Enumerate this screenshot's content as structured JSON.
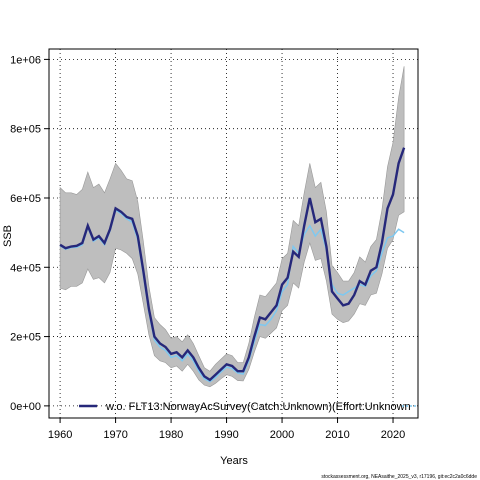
{
  "chart_data": {
    "type": "line",
    "xlabel": "Years",
    "ylabel": "SSB",
    "xlim": [
      1958,
      2024.5
    ],
    "ylim": [
      -35000,
      1030000
    ],
    "x_ticks": [
      1960,
      1970,
      1980,
      1990,
      2000,
      2010,
      2020
    ],
    "x_tick_labels": [
      "1960",
      "1970",
      "1980",
      "1990",
      "2000",
      "2010",
      "2020"
    ],
    "y_ticks": [
      0,
      200000,
      400000,
      600000,
      800000,
      1000000
    ],
    "y_tick_labels": [
      "0e+00",
      "2e+05",
      "4e+05",
      "6e+05",
      "8e+05",
      "1e+06"
    ],
    "grid": true,
    "legend_position": "bottom-right",
    "legend_entry": "w.o. FLT13:NorwayAcSurvey(Catch:Unknown)(Effort:Unknown",
    "footer": "stockassessment.org, NEAsaithe_2025_v3, r17196, git:ec2c2a0c6dde",
    "colors": {
      "band": "#bebebe",
      "band_edge": "#999999",
      "main_line": "#26287a",
      "alt_line": "#7ec8f0",
      "grid": "#000000"
    },
    "x": [
      1960,
      1961,
      1962,
      1963,
      1964,
      1965,
      1966,
      1967,
      1968,
      1969,
      1970,
      1971,
      1972,
      1973,
      1974,
      1975,
      1976,
      1977,
      1978,
      1979,
      1980,
      1981,
      1982,
      1983,
      1984,
      1985,
      1986,
      1987,
      1988,
      1989,
      1990,
      1991,
      1992,
      1993,
      1994,
      1995,
      1996,
      1997,
      1998,
      1999,
      2000,
      2001,
      2002,
      2003,
      2004,
      2005,
      2006,
      2007,
      2008,
      2009,
      2010,
      2011,
      2012,
      2013,
      2014,
      2015,
      2016,
      2017,
      2018,
      2019,
      2020,
      2021,
      2022
    ],
    "series": [
      {
        "name": "SSB",
        "values": [
          465000,
          455000,
          460000,
          462000,
          470000,
          520000,
          480000,
          490000,
          470000,
          510000,
          570000,
          560000,
          545000,
          540000,
          490000,
          390000,
          280000,
          200000,
          180000,
          170000,
          150000,
          155000,
          140000,
          160000,
          140000,
          110000,
          85000,
          75000,
          90000,
          105000,
          120000,
          115000,
          100000,
          100000,
          140000,
          200000,
          255000,
          250000,
          270000,
          290000,
          350000,
          370000,
          445000,
          430000,
          520000,
          600000,
          530000,
          540000,
          460000,
          330000,
          310000,
          290000,
          295000,
          320000,
          360000,
          350000,
          390000,
          400000,
          470000,
          570000,
          610000,
          700000,
          745000
        ]
      },
      {
        "name": "w.o. FLT13:NorwayAcSurvey(Catch:Unknown)(Effort:Unknown",
        "values": [
          462000,
          452000,
          457000,
          458000,
          465000,
          515000,
          475000,
          485000,
          465000,
          505000,
          565000,
          555000,
          540000,
          530000,
          480000,
          380000,
          270000,
          190000,
          170000,
          160000,
          140000,
          145000,
          130000,
          150000,
          130000,
          100000,
          78000,
          70000,
          82000,
          98000,
          112000,
          108000,
          95000,
          92000,
          130000,
          185000,
          235000,
          232000,
          250000,
          275000,
          330000,
          350000,
          460000,
          440000,
          495000,
          520000,
          490000,
          510000,
          450000,
          350000,
          325000,
          320000,
          330000,
          340000,
          350000,
          345000,
          375000,
          390000,
          440000,
          485000,
          490000,
          510000,
          500000
        ]
      }
    ],
    "band_lower": [
      340000,
      335000,
      345000,
      345000,
      355000,
      395000,
      365000,
      370000,
      355000,
      385000,
      455000,
      450000,
      440000,
      425000,
      380000,
      295000,
      205000,
      145000,
      130000,
      125000,
      110000,
      115000,
      100000,
      120000,
      100000,
      75000,
      60000,
      55000,
      65000,
      78000,
      90000,
      85000,
      73000,
      72000,
      105000,
      155000,
      200000,
      195000,
      210000,
      225000,
      275000,
      290000,
      355000,
      340000,
      415000,
      470000,
      420000,
      425000,
      360000,
      265000,
      250000,
      240000,
      245000,
      265000,
      295000,
      290000,
      320000,
      325000,
      380000,
      455000,
      480000,
      550000,
      560000
    ],
    "band_upper": [
      630000,
      615000,
      615000,
      610000,
      625000,
      675000,
      630000,
      640000,
      615000,
      655000,
      700000,
      680000,
      655000,
      650000,
      590000,
      475000,
      345000,
      255000,
      235000,
      220000,
      195000,
      200000,
      185000,
      205000,
      180000,
      145000,
      110000,
      100000,
      120000,
      135000,
      150000,
      145000,
      125000,
      125000,
      180000,
      255000,
      320000,
      315000,
      335000,
      355000,
      425000,
      440000,
      535000,
      520000,
      615000,
      700000,
      630000,
      645000,
      560000,
      405000,
      385000,
      360000,
      360000,
      385000,
      430000,
      415000,
      460000,
      480000,
      565000,
      690000,
      760000,
      890000,
      980000
    ]
  }
}
